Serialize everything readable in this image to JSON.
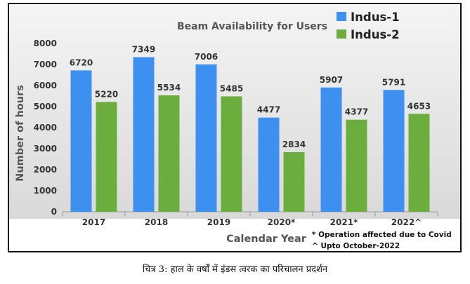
{
  "chart_data": {
    "type": "bar",
    "title": "Beam Availability for Users",
    "xlabel": "Calendar Year",
    "ylabel": "Number of hours",
    "categories": [
      "2017",
      "2018",
      "2019",
      "2020*",
      "2021*",
      "2022^"
    ],
    "series": [
      {
        "name": "Indus-1",
        "color": "#3d8ff0",
        "values": [
          6720,
          7349,
          7006,
          4477,
          5907,
          5791
        ]
      },
      {
        "name": "Indus-2",
        "color": "#6cae3e",
        "values": [
          5220,
          5534,
          5485,
          2834,
          4377,
          4653
        ]
      }
    ],
    "ylim": [
      0,
      8000
    ],
    "yticks": [
      0,
      1000,
      2000,
      3000,
      4000,
      5000,
      6000,
      7000,
      8000
    ],
    "legend_position": "top-right",
    "grid": false,
    "annotations": [
      "* Operation affected due to Covid",
      "^  Upto October-2022"
    ]
  },
  "caption": "चित्र 3: हाल के वर्षों में इंडस त्वरक का परिचालन प्रदर्शन"
}
